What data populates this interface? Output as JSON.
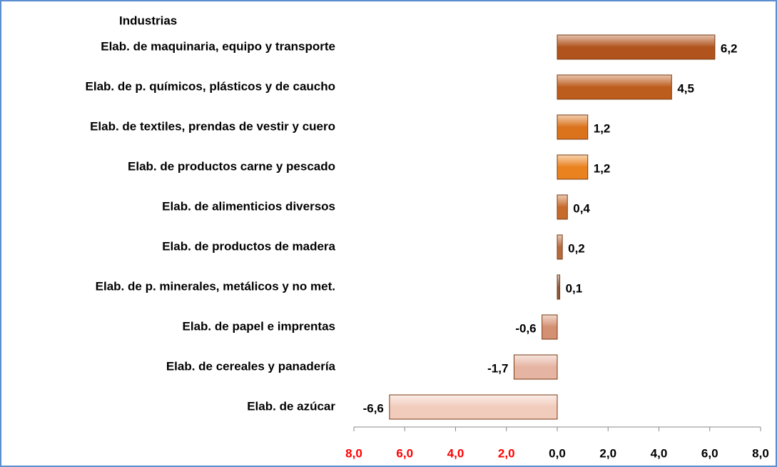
{
  "chart_data": {
    "type": "barh",
    "title": "Industrias",
    "categories": [
      "Elab. de maquinaria, equipo y transporte",
      "Elab. de p. químicos, plásticos y de caucho",
      "Elab. de textiles, prendas de vestir y cuero",
      "Elab. de productos carne y pescado",
      "Elab. de alimenticios diversos",
      "Elab. de productos de madera",
      "Elab. de p. minerales, metálicos y no met.",
      "Elab. de papel e imprentas",
      "Elab. de cereales y panadería",
      "Elab. de azúcar"
    ],
    "values": [
      6.2,
      4.5,
      1.2,
      1.2,
      0.4,
      0.2,
      0.1,
      -0.6,
      -1.7,
      -6.6
    ],
    "value_labels": [
      "6,2",
      "4,5",
      "1,2",
      "1,2",
      "0,4",
      "0,2",
      "0,1",
      "-0,6",
      "-1,7",
      "-6,6"
    ],
    "colors": [
      "#b0531c",
      "#bd5d1d",
      "#db731d",
      "#ea821f",
      "#c76b2c",
      "#b86b3d",
      "#8b5a42",
      "#d49072",
      "#e6b4a2",
      "#f1cbbc"
    ],
    "xlim": [
      -8,
      8
    ],
    "xticks": [
      {
        "value": -8,
        "label": "8,0"
      },
      {
        "value": -6,
        "label": "6,0"
      },
      {
        "value": -4,
        "label": "4,0"
      },
      {
        "value": -2,
        "label": "2,0"
      },
      {
        "value": 0,
        "label": "0,0"
      },
      {
        "value": 2,
        "label": "2,0"
      },
      {
        "value": 4,
        "label": "4,0"
      },
      {
        "value": 6,
        "label": "6,0"
      },
      {
        "value": 8,
        "label": "8,0"
      }
    ],
    "negative_tick_color": "#ff0000",
    "tick_color": "#000000"
  }
}
